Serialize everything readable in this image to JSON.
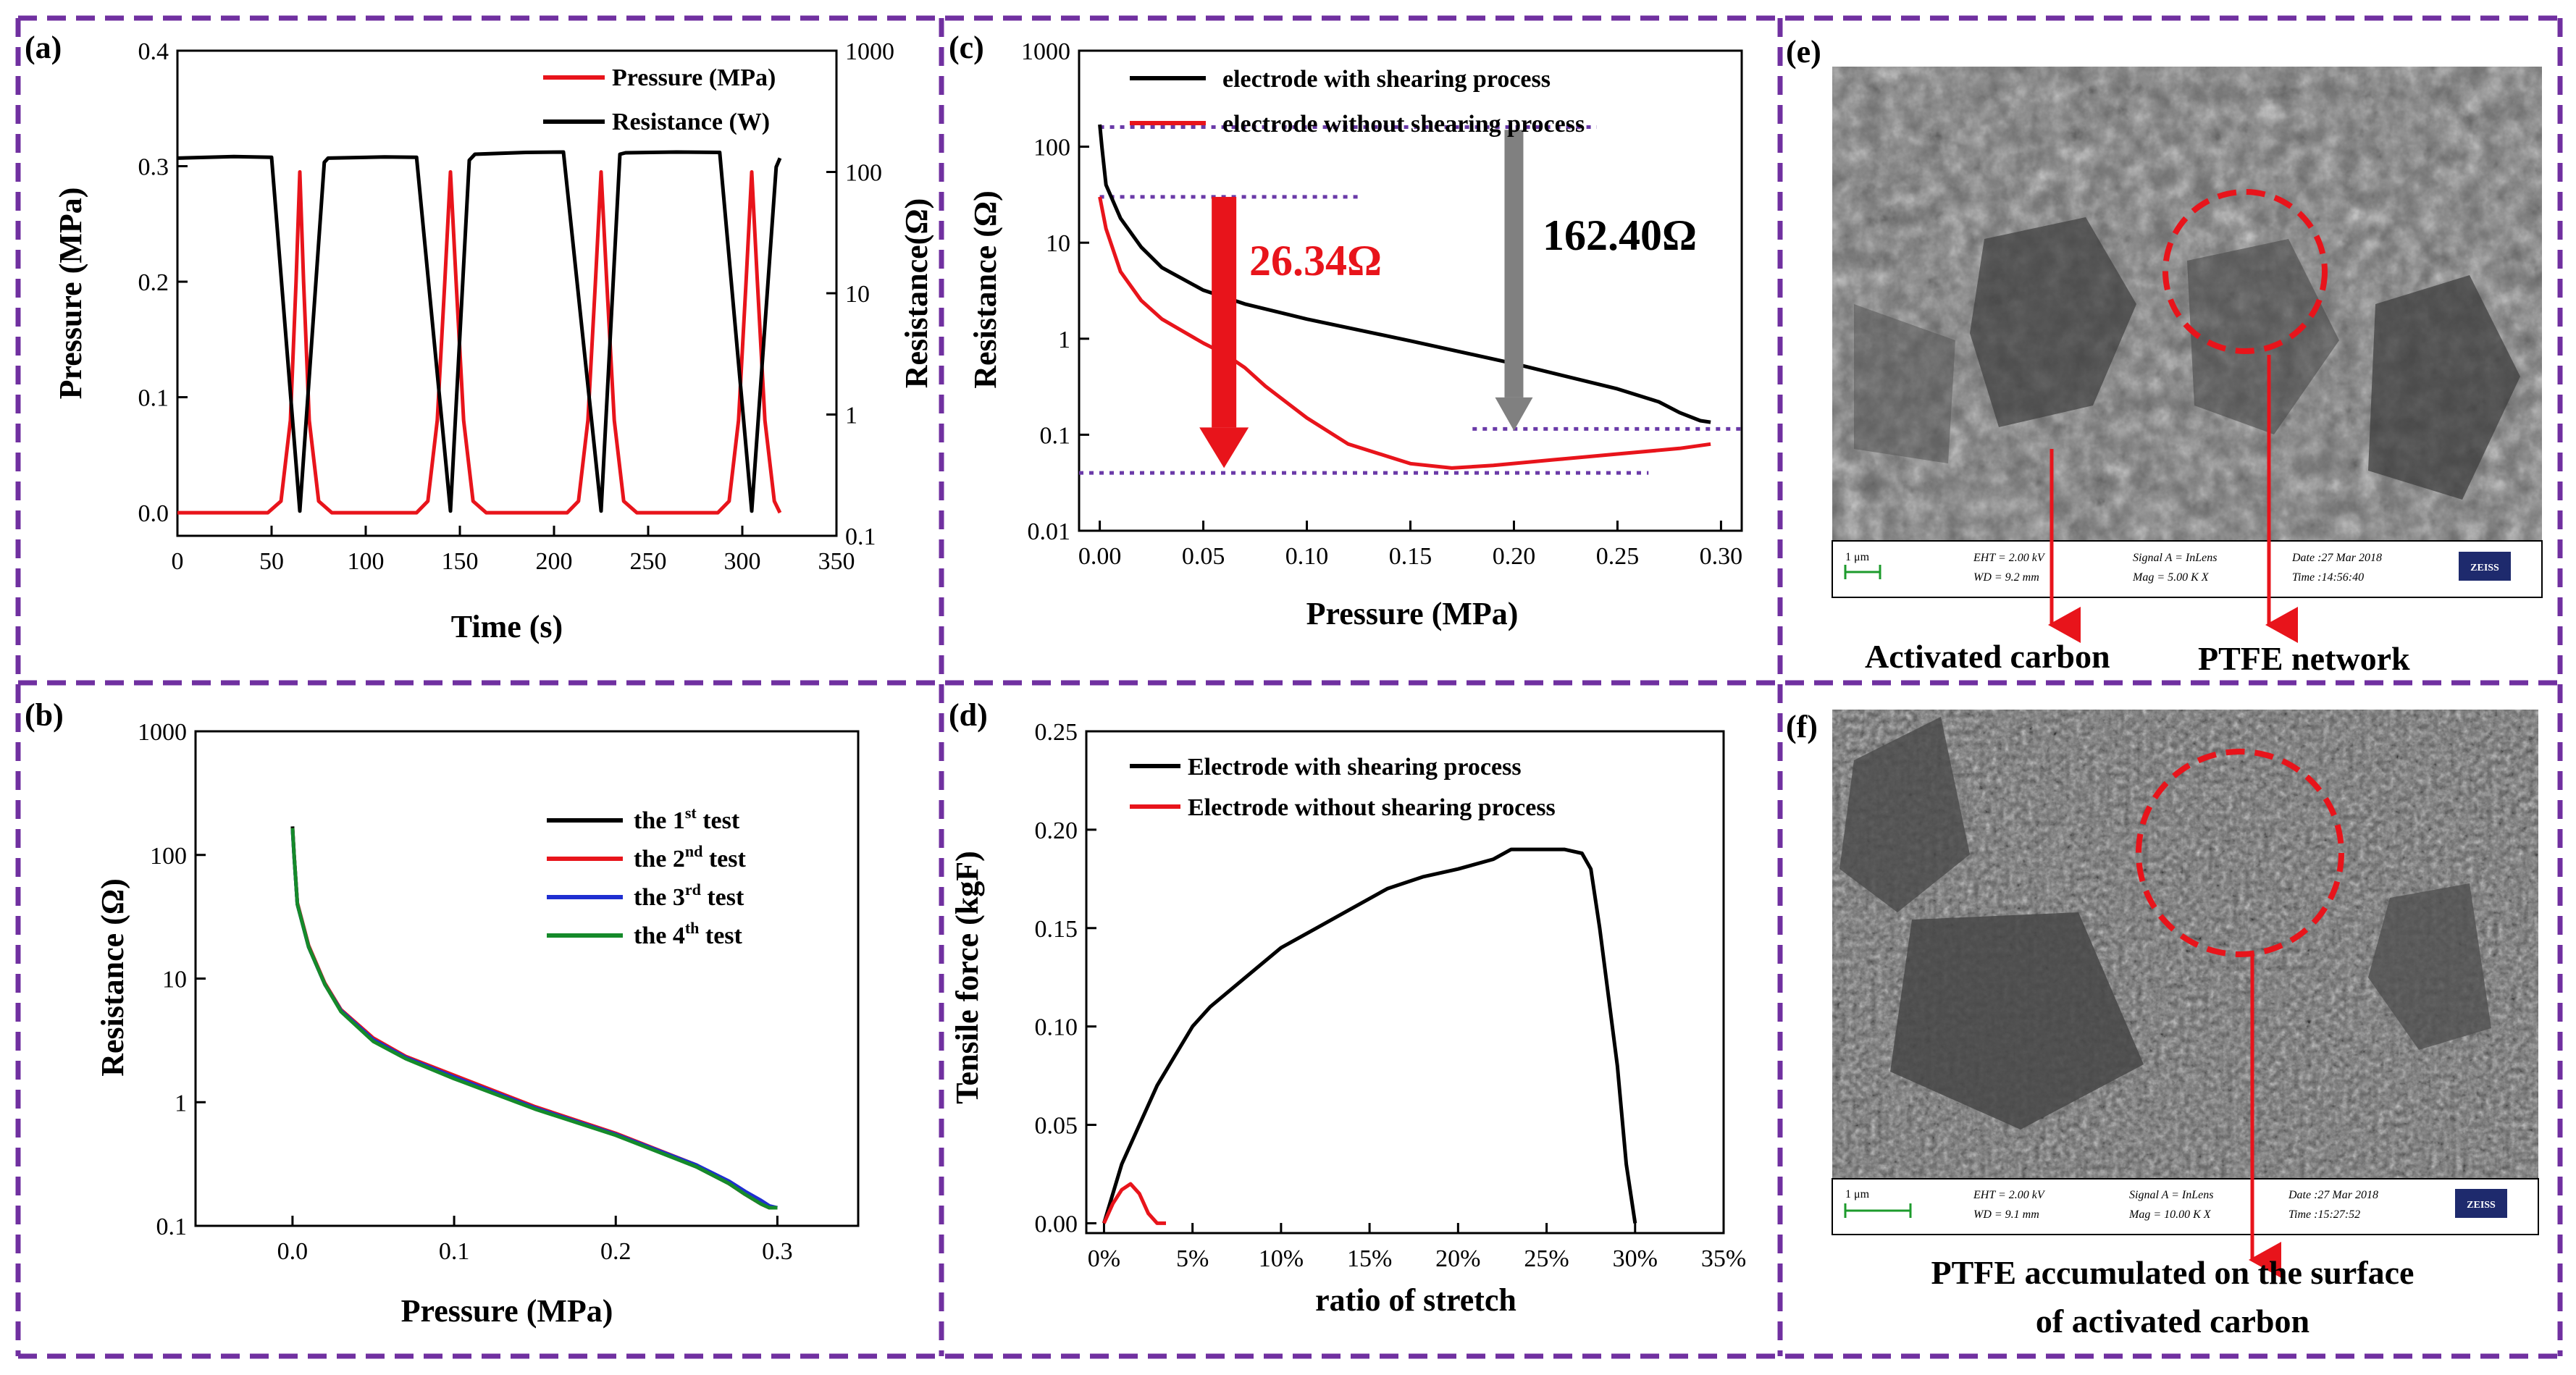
{
  "colors": {
    "border": "#7030a0",
    "black": "#000000",
    "red": "#e8141b",
    "blue": "#1f2ed1",
    "green": "#158a2a",
    "gray": "#808080",
    "dotted": "#6a3aa8"
  },
  "chart_data": [
    {
      "id": "a",
      "panel_label": "(a)",
      "type": "line",
      "xlabel": "Time (s)",
      "ylabel": "Pressure (MPa)",
      "y2label": "Resistance(Ω)",
      "xlim": [
        0,
        350
      ],
      "ylim": [
        -0.02,
        0.4
      ],
      "y2lim_log": [
        -1,
        3
      ],
      "xticks": [
        "0",
        "50",
        "100",
        "150",
        "200",
        "250",
        "300",
        "350"
      ],
      "yticks": [
        "0.0",
        "0.1",
        "0.2",
        "0.3",
        "0.4"
      ],
      "y2ticks": [
        "0.1",
        "1",
        "10",
        "100",
        "1000"
      ],
      "legend": [
        "Pressure (MPa)",
        "Resistance (W)"
      ],
      "series": [
        {
          "name": "Pressure (MPa)",
          "color": "red",
          "axis": "left",
          "x": [
            0,
            48,
            55,
            60,
            63,
            65,
            67,
            70,
            75,
            82,
            127,
            133,
            138,
            142,
            145,
            148,
            152,
            157,
            164,
            207,
            213,
            218,
            222,
            225,
            228,
            232,
            237,
            244,
            287,
            293,
            298,
            302,
            305,
            308,
            312,
            317,
            320
          ],
          "y": [
            0,
            0,
            0.01,
            0.08,
            0.2,
            0.295,
            0.2,
            0.08,
            0.01,
            0,
            0,
            0.01,
            0.08,
            0.2,
            0.295,
            0.2,
            0.08,
            0.01,
            0,
            0,
            0.01,
            0.08,
            0.2,
            0.295,
            0.2,
            0.08,
            0.01,
            0,
            0,
            0.01,
            0.08,
            0.2,
            0.295,
            0.2,
            0.08,
            0.01,
            0
          ]
        },
        {
          "name": "Resistance (W)",
          "color": "black",
          "axis": "right",
          "x": [
            0,
            30,
            50,
            65,
            78,
            80,
            110,
            127,
            145,
            155,
            158,
            185,
            205,
            225,
            235,
            238,
            265,
            288,
            305,
            318,
            320
          ],
          "y": [
            130,
            134,
            132,
            0.16,
            120,
            130,
            133,
            132,
            0.16,
            125,
            140,
            145,
            146,
            0.16,
            140,
            144,
            146,
            145,
            0.16,
            110,
            130
          ]
        }
      ]
    },
    {
      "id": "b",
      "panel_label": "(b)",
      "type": "line",
      "xlabel": "Pressure (MPa)",
      "ylabel": "Resistance (Ω)",
      "xlim": [
        -0.06,
        0.35
      ],
      "ylim_log": [
        -1,
        3
      ],
      "xticks": [
        "0.0",
        "0.1",
        "0.2",
        "0.3"
      ],
      "yticks": [
        "0.1",
        "1",
        "10",
        "100",
        "1000"
      ],
      "legend": [
        {
          "prefix": "the 1",
          "sup": "st",
          "suffix": " test"
        },
        {
          "prefix": "the 2",
          "sup": "nd",
          "suffix": " test"
        },
        {
          "prefix": "the 3",
          "sup": "rd",
          "suffix": " test"
        },
        {
          "prefix": "the 4",
          "sup": "th",
          "suffix": " test"
        }
      ],
      "series": [
        {
          "name": "the 1st test",
          "color": "black",
          "x": [
            0,
            0.001,
            0.003,
            0.01,
            0.02,
            0.03,
            0.05,
            0.07,
            0.1,
            0.15,
            0.2,
            0.25,
            0.27,
            0.28,
            0.29,
            0.295,
            0.3
          ],
          "y": [
            170,
            100,
            40,
            18,
            9,
            5.5,
            3.2,
            2.3,
            1.6,
            0.9,
            0.55,
            0.3,
            0.22,
            0.18,
            0.15,
            0.14,
            0.14
          ]
        },
        {
          "name": "the 2nd test",
          "color": "red",
          "x": [
            0,
            0.001,
            0.003,
            0.01,
            0.02,
            0.03,
            0.05,
            0.07,
            0.1,
            0.15,
            0.2,
            0.25,
            0.27,
            0.28,
            0.29,
            0.295,
            0.3
          ],
          "y": [
            165,
            100,
            41,
            18.5,
            9.2,
            5.6,
            3.3,
            2.35,
            1.65,
            0.92,
            0.56,
            0.31,
            0.22,
            0.18,
            0.15,
            0.14,
            0.14
          ]
        },
        {
          "name": "the 3rd test",
          "color": "blue",
          "x": [
            0,
            0.001,
            0.003,
            0.01,
            0.02,
            0.03,
            0.05,
            0.07,
            0.1,
            0.15,
            0.2,
            0.25,
            0.27,
            0.28,
            0.29,
            0.295,
            0.3
          ],
          "y": [
            160,
            98,
            40,
            18,
            9,
            5.5,
            3.2,
            2.3,
            1.6,
            0.9,
            0.55,
            0.31,
            0.23,
            0.19,
            0.16,
            0.145,
            0.14
          ]
        },
        {
          "name": "the 4th test",
          "color": "green",
          "x": [
            0,
            0.001,
            0.003,
            0.01,
            0.02,
            0.03,
            0.05,
            0.07,
            0.1,
            0.15,
            0.2,
            0.25,
            0.27,
            0.28,
            0.29,
            0.295,
            0.3
          ],
          "y": [
            165,
            99,
            40,
            18,
            9,
            5.4,
            3.1,
            2.25,
            1.55,
            0.88,
            0.54,
            0.3,
            0.22,
            0.18,
            0.15,
            0.14,
            0.14
          ]
        }
      ]
    },
    {
      "id": "c",
      "panel_label": "(c)",
      "type": "line",
      "xlabel": "Pressure (MPa)",
      "ylabel": "Resistance (Ω)",
      "xlim": [
        -0.01,
        0.31
      ],
      "ylim_log": [
        -2,
        3
      ],
      "xticks": [
        "0.00",
        "0.05",
        "0.10",
        "0.15",
        "0.20",
        "0.25",
        "0.30"
      ],
      "yticks": [
        "0.01",
        "0.1",
        "1",
        "10",
        "100",
        "1000"
      ],
      "legend": [
        "electrode with shearing process",
        "electrode without shearing process"
      ],
      "annotations": [
        "26.34Ω",
        "162.40Ω"
      ],
      "arrows": [
        {
          "label": "26.34Ω",
          "x": 0.06,
          "from": 30,
          "to": 0.045,
          "color": "red"
        },
        {
          "label": "162.40Ω",
          "x": 0.2,
          "from": 150,
          "to": 0.11,
          "color": "gray"
        }
      ],
      "guides": [
        {
          "x1": 0.0,
          "x2": 0.24,
          "y": 160
        },
        {
          "x1": 0.0,
          "x2": 0.125,
          "y": 30
        },
        {
          "x1": 0.18,
          "x2": 0.31,
          "y": 0.115
        },
        {
          "x1": -0.01,
          "x2": 0.265,
          "y": 0.04
        }
      ],
      "series": [
        {
          "name": "electrode with shearing process",
          "color": "black",
          "x": [
            0,
            0.001,
            0.003,
            0.01,
            0.02,
            0.03,
            0.05,
            0.07,
            0.1,
            0.15,
            0.2,
            0.25,
            0.27,
            0.28,
            0.29,
            0.295
          ],
          "y": [
            170,
            100,
            40,
            18,
            9,
            5.5,
            3.2,
            2.3,
            1.6,
            0.95,
            0.55,
            0.3,
            0.22,
            0.17,
            0.14,
            0.135
          ]
        },
        {
          "name": "electrode without shearing process",
          "color": "red",
          "x": [
            0,
            0.003,
            0.01,
            0.02,
            0.03,
            0.04,
            0.05,
            0.06,
            0.07,
            0.08,
            0.1,
            0.12,
            0.15,
            0.17,
            0.19,
            0.22,
            0.25,
            0.28,
            0.295
          ],
          "y": [
            30,
            14,
            5,
            2.5,
            1.6,
            1.2,
            0.9,
            0.7,
            0.5,
            0.32,
            0.15,
            0.08,
            0.05,
            0.045,
            0.048,
            0.055,
            0.063,
            0.072,
            0.08
          ]
        }
      ]
    },
    {
      "id": "d",
      "panel_label": "(d)",
      "type": "line",
      "xlabel": "ratio of stretch",
      "ylabel": "Tensile force (kgF)",
      "xlim": [
        -0.01,
        0.35
      ],
      "ylim": [
        -0.005,
        0.25
      ],
      "xticks": [
        "0%",
        "5%",
        "10%",
        "15%",
        "20%",
        "25%",
        "30%",
        "35%"
      ],
      "yticks": [
        "0.00",
        "0.05",
        "0.10",
        "0.15",
        "0.20",
        "0.25"
      ],
      "legend": [
        "Electrode with shearing process",
        "Electrode without shearing process"
      ],
      "series": [
        {
          "name": "Electrode with shearing process",
          "color": "black",
          "x": [
            0,
            0.01,
            0.02,
            0.03,
            0.04,
            0.05,
            0.06,
            0.08,
            0.1,
            0.12,
            0.14,
            0.16,
            0.18,
            0.2,
            0.22,
            0.23,
            0.24,
            0.25,
            0.26,
            0.27,
            0.275,
            0.28,
            0.29,
            0.295,
            0.3
          ],
          "y": [
            0,
            0.03,
            0.05,
            0.07,
            0.085,
            0.1,
            0.11,
            0.125,
            0.14,
            0.15,
            0.16,
            0.17,
            0.176,
            0.18,
            0.185,
            0.19,
            0.19,
            0.19,
            0.19,
            0.188,
            0.18,
            0.15,
            0.08,
            0.03,
            0
          ]
        },
        {
          "name": "Electrode without shearing process",
          "color": "red",
          "x": [
            0,
            0.005,
            0.01,
            0.015,
            0.02,
            0.025,
            0.03,
            0.035
          ],
          "y": [
            0,
            0.01,
            0.017,
            0.02,
            0.015,
            0.005,
            0,
            0
          ]
        }
      ]
    }
  ],
  "panels": {
    "e": {
      "label": "(e)",
      "callouts": [
        "Activated carbon",
        "PTFE network"
      ],
      "info": {
        "scale": "1 μm",
        "eht": "EHT = 2.00 kV",
        "wd": "WD = 9.2 mm",
        "signal": "Signal A = InLens",
        "mag": "Mag = 5.00 K X",
        "date": "Date :27 Mar 2018",
        "time": "Time :14:56:40",
        "brand": "ZEISS"
      }
    },
    "f": {
      "label": "(f)",
      "callouts": [
        "PTFE accumulated on the surface",
        "of activated carbon"
      ],
      "info": {
        "scale": "1 μm",
        "eht": "EHT = 2.00 kV",
        "wd": "WD = 9.1 mm",
        "signal": "Signal A = InLens",
        "mag": "Mag = 10.00 K X",
        "date": "Date :27 Mar 2018",
        "time": "Time :15:27:52",
        "brand": "ZEISS"
      }
    }
  }
}
